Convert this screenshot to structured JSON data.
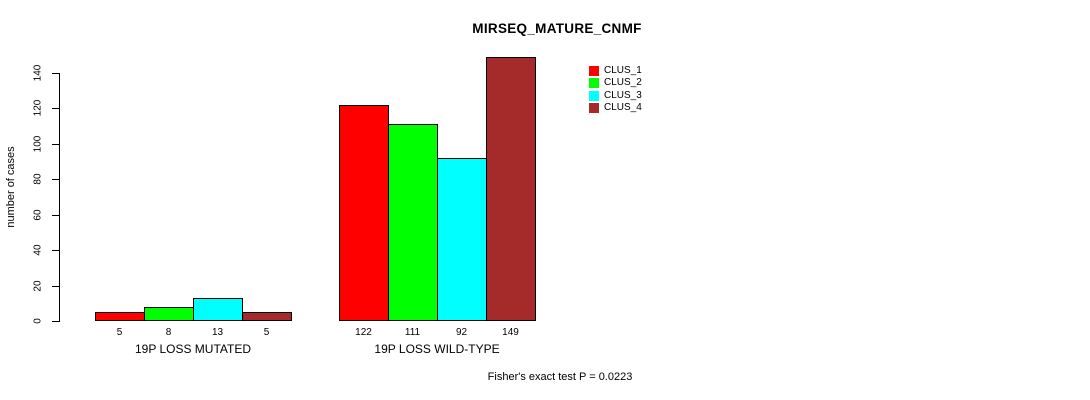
{
  "chart_data": {
    "type": "bar",
    "title": "MIRSEQ_MATURE_CNMF",
    "ylabel": "number of cases",
    "xlabel": "",
    "ylim": [
      0,
      140
    ],
    "yticks": [
      0,
      20,
      40,
      60,
      80,
      100,
      120,
      140
    ],
    "categories": [
      "19P LOSS MUTATED",
      "19P LOSS WILD-TYPE"
    ],
    "series": [
      {
        "name": "CLUS_1",
        "color": "#FF0000",
        "values": [
          5,
          122
        ]
      },
      {
        "name": "CLUS_2",
        "color": "#00FF00",
        "values": [
          8,
          111
        ]
      },
      {
        "name": "CLUS_3",
        "color": "#00FFFF",
        "values": [
          13,
          92
        ]
      },
      {
        "name": "CLUS_4",
        "color": "#A52A2A",
        "values": [
          5,
          149
        ]
      }
    ],
    "bar_border_color": "#000000",
    "show_value_labels": true,
    "grid": false,
    "legend_position": "top-right",
    "footnote": "Fisher's exact test P = 0.0223"
  }
}
